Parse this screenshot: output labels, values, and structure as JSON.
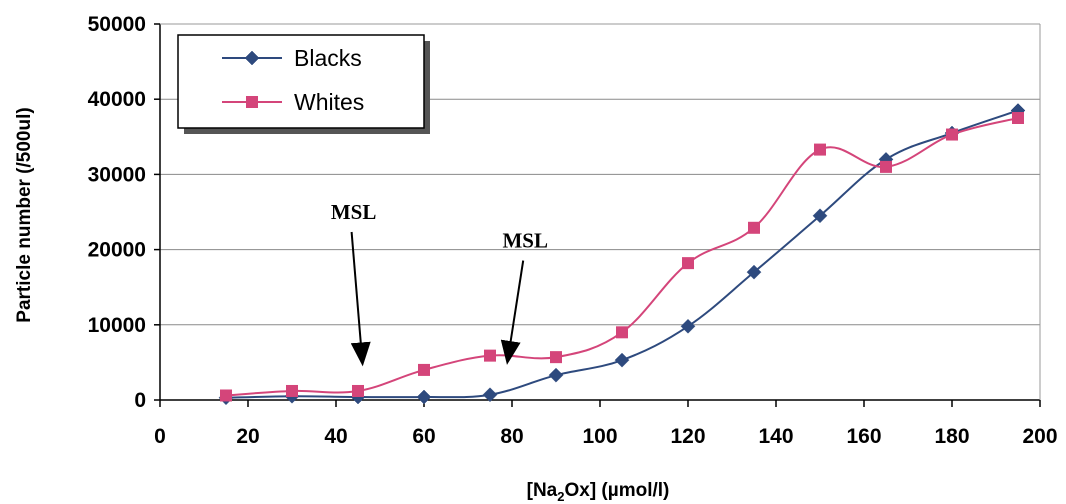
{
  "chart_data": {
    "type": "line",
    "xlabel_main": "[Na",
    "xlabel_sub": "2",
    "xlabel_rest": "Ox] (µmol/l)",
    "ylabel": "Particle number (/500ul)",
    "xlim": [
      0,
      200
    ],
    "ylim": [
      0,
      50000
    ],
    "x_ticks": [
      "0",
      "20",
      "40",
      "60",
      "80",
      "100",
      "120",
      "140",
      "160",
      "180",
      "200"
    ],
    "y_ticks": [
      "0",
      "10000",
      "20000",
      "30000",
      "40000",
      "50000"
    ],
    "grid": "horizontal",
    "legend_position": "top-left",
    "series": [
      {
        "name": "Blacks",
        "color": "#2E4A7E",
        "marker": "diamond",
        "x": [
          15,
          30,
          45,
          60,
          75,
          90,
          105,
          120,
          135,
          150,
          165,
          180,
          195
        ],
        "y": [
          300,
          500,
          400,
          400,
          700,
          3300,
          5300,
          9800,
          17000,
          24500,
          32000,
          35500,
          38500
        ]
      },
      {
        "name": "Whites",
        "color": "#D4457A",
        "marker": "square",
        "x": [
          15,
          30,
          45,
          60,
          75,
          90,
          105,
          120,
          135,
          150,
          165,
          180,
          195
        ],
        "y": [
          600,
          1200,
          1200,
          4000,
          5900,
          5700,
          9000,
          18200,
          22900,
          33300,
          31000,
          35300,
          37500
        ]
      }
    ],
    "annotations": [
      {
        "text": "MSL",
        "x": 44,
        "y": 25000
      },
      {
        "text": "MSL",
        "x": 83,
        "y": 21200
      }
    ]
  }
}
